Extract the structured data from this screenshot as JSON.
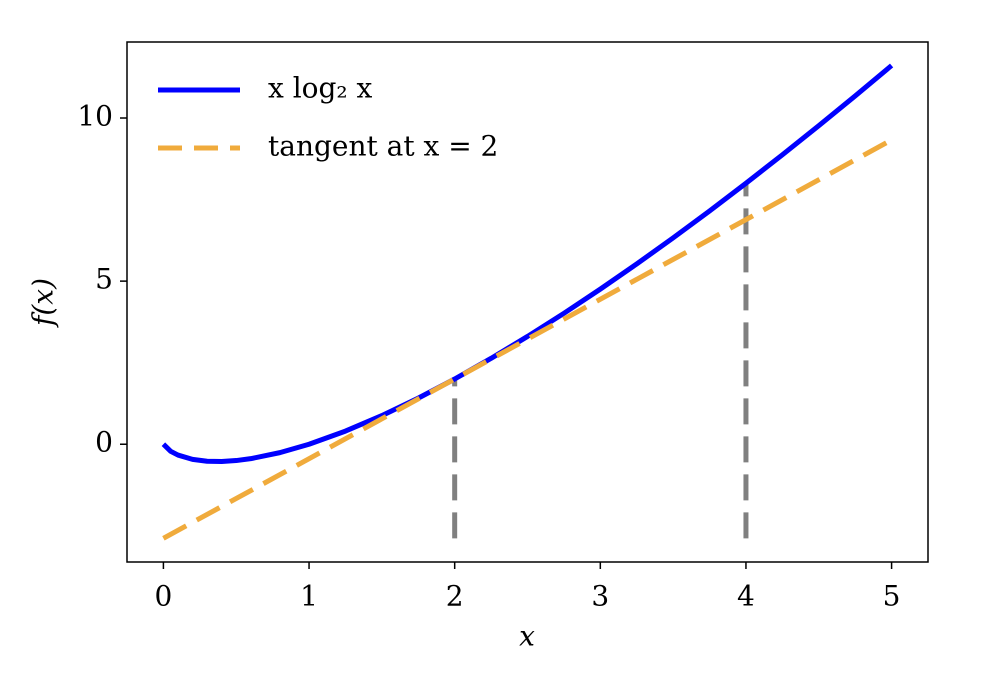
{
  "chart_data": {
    "type": "line",
    "xlabel": "x",
    "ylabel": "f(x)",
    "xlim": [
      -0.25,
      5.25
    ],
    "ylim": [
      -3.61,
      12.33
    ],
    "xticks": [
      0,
      1,
      2,
      3,
      4,
      5
    ],
    "yticks": [
      0,
      5,
      10
    ],
    "grid": false,
    "legend": "upper left",
    "series": [
      {
        "name": "x log₂ x",
        "color": "#0000ff",
        "linestyle": "solid",
        "x": [
          0,
          0.05,
          0.1,
          0.2,
          0.3,
          0.4,
          0.5,
          0.6,
          0.8,
          1,
          1.25,
          1.5,
          1.75,
          2,
          2.25,
          2.5,
          2.75,
          3,
          3.25,
          3.5,
          3.75,
          4,
          4.25,
          4.5,
          4.75,
          5
        ],
        "values": [
          0,
          -0.2161,
          -0.3322,
          -0.4644,
          -0.5211,
          -0.5288,
          -0.5,
          -0.4422,
          -0.2575,
          0,
          0.4024,
          0.8774,
          1.4129,
          2,
          2.6323,
          3.3048,
          4.0134,
          4.7549,
          5.5263,
          6.3259,
          7.1508,
          8,
          8.8719,
          9.7646,
          10.6775,
          11.6096
        ]
      },
      {
        "name": "tangent at x = 2",
        "color": "#f0ab3c",
        "linestyle": "dashed",
        "x": [
          0,
          5
        ],
        "values": [
          -2.885,
          9.329
        ]
      }
    ],
    "vlines": [
      {
        "x": 2,
        "values": [
          -2.885,
          2
        ],
        "color": "#808080"
      },
      {
        "x": 4,
        "values": [
          -2.885,
          8
        ],
        "color": "#808080"
      }
    ]
  }
}
